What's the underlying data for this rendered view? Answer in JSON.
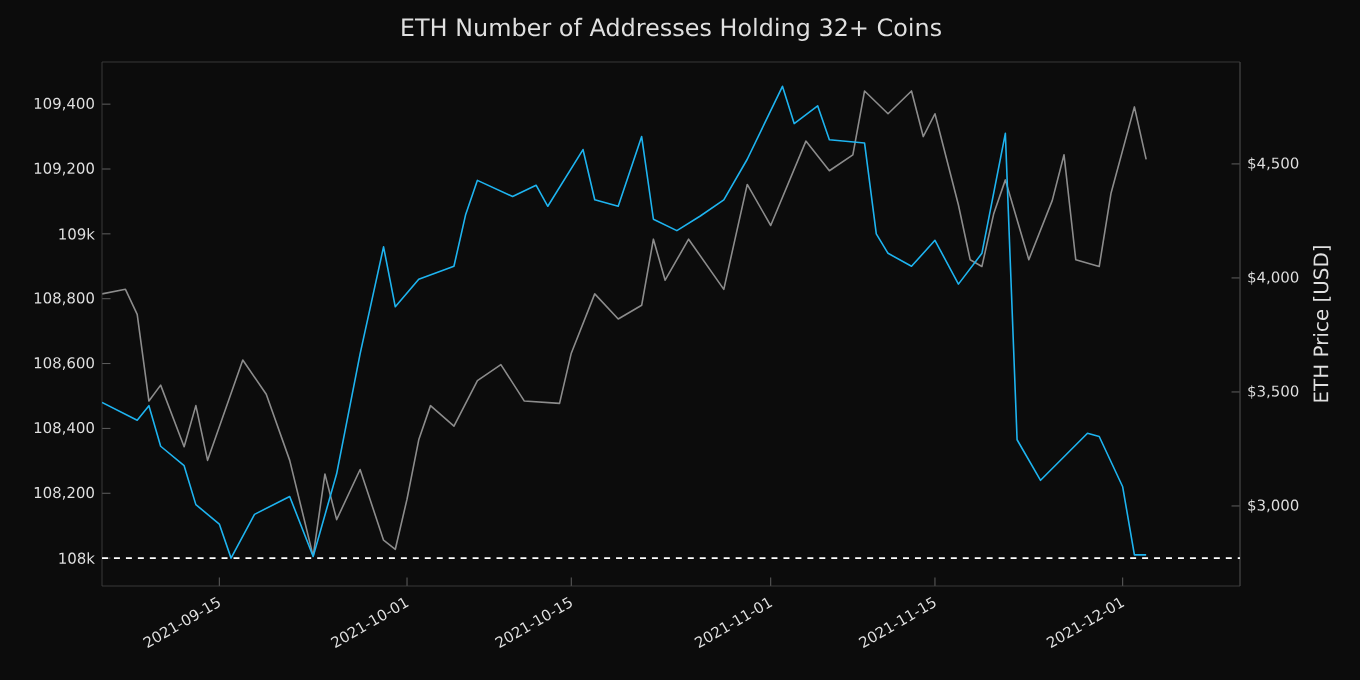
{
  "chart_data": {
    "type": "line",
    "title": "ETH Number of Addresses Holding 32+ Coins",
    "y2label": "ETH Price [USD]",
    "xlim": [
      "2021-09-05",
      "2021-12-11"
    ],
    "xticks": [
      "2021-09-15",
      "2021-10-01",
      "2021-10-15",
      "2021-11-01",
      "2021-11-15",
      "2021-12-01"
    ],
    "ylim": [
      107914,
      109530
    ],
    "yticks": [
      {
        "value": 108000,
        "label": "108k"
      },
      {
        "value": 108200,
        "label": "108,200"
      },
      {
        "value": 108400,
        "label": "108,400"
      },
      {
        "value": 108600,
        "label": "108,600"
      },
      {
        "value": 108800,
        "label": "108,800"
      },
      {
        "value": 109000,
        "label": "109k"
      },
      {
        "value": 109200,
        "label": "109,200"
      },
      {
        "value": 109400,
        "label": "109,400"
      }
    ],
    "y2lim": [
      2649,
      4947
    ],
    "y2ticks": [
      {
        "value": 3000,
        "label": "$3,000"
      },
      {
        "value": 3500,
        "label": "$3,500"
      },
      {
        "value": 4000,
        "label": "$4,000"
      },
      {
        "value": 4500,
        "label": "$4,500"
      }
    ],
    "ref_lines": [
      {
        "axis": "y",
        "value": 108000,
        "color": "#ffffff",
        "line_style": "dashed"
      }
    ],
    "series": [
      {
        "color": "#8c8c8c",
        "axis": "y2",
        "x": [
          "2021-09-05",
          "2021-09-07",
          "2021-09-08",
          "2021-09-09",
          "2021-09-10",
          "2021-09-12",
          "2021-09-13",
          "2021-09-14",
          "2021-09-17",
          "2021-09-19",
          "2021-09-21",
          "2021-09-23",
          "2021-09-24",
          "2021-09-25",
          "2021-09-27",
          "2021-09-29",
          "2021-09-30",
          "2021-10-01",
          "2021-10-02",
          "2021-10-03",
          "2021-10-05",
          "2021-10-07",
          "2021-10-09",
          "2021-10-11",
          "2021-10-14",
          "2021-10-15",
          "2021-10-17",
          "2021-10-19",
          "2021-10-21",
          "2021-10-22",
          "2021-10-23",
          "2021-10-24",
          "2021-10-25",
          "2021-10-28",
          "2021-10-30",
          "2021-11-01",
          "2021-11-04",
          "2021-11-06",
          "2021-11-08",
          "2021-11-09",
          "2021-11-11",
          "2021-11-13",
          "2021-11-14",
          "2021-11-15",
          "2021-11-17",
          "2021-11-18",
          "2021-11-19",
          "2021-11-20",
          "2021-11-21",
          "2021-11-23",
          "2021-11-25",
          "2021-11-26",
          "2021-11-27",
          "2021-11-29",
          "2021-11-30",
          "2021-12-02",
          "2021-12-03"
        ],
        "values": [
          3930,
          3950,
          3840,
          3460,
          3530,
          3260,
          3440,
          3200,
          3640,
          3490,
          3200,
          2780,
          3140,
          2940,
          3160,
          2850,
          2810,
          3030,
          3290,
          3440,
          3350,
          3550,
          3620,
          3460,
          3450,
          3670,
          3930,
          3820,
          3880,
          4170,
          3990,
          4080,
          4170,
          3950,
          4410,
          4230,
          4600,
          4470,
          4540,
          4820,
          4720,
          4820,
          4620,
          4720,
          4320,
          4080,
          4050,
          4280,
          4430,
          4080,
          4340,
          4540,
          4080,
          4050,
          4370,
          4750,
          4520
        ]
      },
      {
        "color": "#1eb4f0",
        "x": [
          "2021-09-05",
          "2021-09-08",
          "2021-09-09",
          "2021-09-10",
          "2021-09-12",
          "2021-09-13",
          "2021-09-15",
          "2021-09-16",
          "2021-09-18",
          "2021-09-21",
          "2021-09-23",
          "2021-09-25",
          "2021-09-27",
          "2021-09-28",
          "2021-09-29",
          "2021-09-30",
          "2021-10-02",
          "2021-10-05",
          "2021-10-06",
          "2021-10-07",
          "2021-10-10",
          "2021-10-12",
          "2021-10-13",
          "2021-10-16",
          "2021-10-17",
          "2021-10-19",
          "2021-10-21",
          "2021-10-22",
          "2021-10-24",
          "2021-10-26",
          "2021-10-28",
          "2021-10-30",
          "2021-11-02",
          "2021-11-03",
          "2021-11-05",
          "2021-11-06",
          "2021-11-09",
          "2021-11-10",
          "2021-11-11",
          "2021-11-13",
          "2021-11-15",
          "2021-11-17",
          "2021-11-19",
          "2021-11-21",
          "2021-11-22",
          "2021-11-24",
          "2021-11-28",
          "2021-11-29",
          "2021-12-01",
          "2021-12-02",
          "2021-12-03"
        ],
        "values": [
          108480,
          108425,
          108470,
          108345,
          108285,
          108165,
          108105,
          108000,
          108135,
          108190,
          108005,
          108260,
          108630,
          108795,
          108960,
          108775,
          108860,
          108900,
          109060,
          109165,
          109115,
          109150,
          109085,
          109260,
          109105,
          109085,
          109300,
          109045,
          109010,
          109055,
          109105,
          109230,
          109455,
          109340,
          109395,
          109290,
          109280,
          109000,
          108940,
          108900,
          108980,
          108845,
          108940,
          109310,
          108365,
          108240,
          108385,
          108375,
          108220,
          108010,
          108010
        ]
      }
    ]
  }
}
